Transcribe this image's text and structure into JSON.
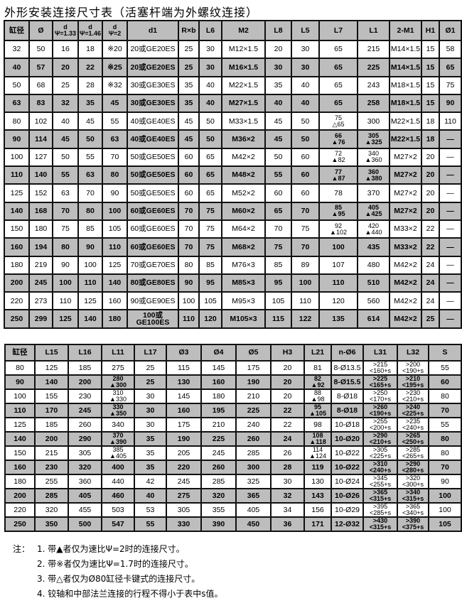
{
  "title": "外形安装连接尺寸表（活塞杆端为外螺纹连接）",
  "colors": {
    "shaded_row": "#bdbdbd",
    "border": "#111111"
  },
  "table1": {
    "headers": [
      "缸径",
      "Ø",
      "d\nΨ=1.33",
      "d\nΨ=1.46",
      "d\nΨ=2",
      "d1",
      "R×b",
      "L6",
      "M2",
      "L8",
      "L5",
      "L7",
      "L1",
      "2-M1",
      "H1",
      "Ø1"
    ],
    "rows": [
      [
        "32",
        "50",
        "16",
        "18",
        "※20",
        "20或GE20ES",
        "25",
        "30",
        "M12×1.5",
        "20",
        "30",
        "65",
        "215",
        "M14×1.5",
        "15",
        "58"
      ],
      [
        "40",
        "57",
        "20",
        "22",
        "※25",
        "20或GE20ES",
        "25",
        "30",
        "M16×1.5",
        "30",
        "30",
        "65",
        "225",
        "M14×1.5",
        "15",
        "65"
      ],
      [
        "50",
        "68",
        "25",
        "28",
        "※32",
        "30或GE30ES",
        "35",
        "40",
        "M22×1.5",
        "35",
        "40",
        "65",
        "243",
        "M18×1.5",
        "15",
        "75"
      ],
      [
        "63",
        "83",
        "32",
        "35",
        "45",
        "30或GE30ES",
        "35",
        "40",
        "M27×1.5",
        "40",
        "40",
        "65",
        "258",
        "M18×1.5",
        "15",
        "90"
      ],
      [
        "80",
        "102",
        "40",
        "45",
        "55",
        "40或GE40ES",
        "45",
        "50",
        "M33×1.5",
        "45",
        "50",
        "75\n△65",
        "300",
        "M22×1.5",
        "18",
        "110"
      ],
      [
        "90",
        "114",
        "45",
        "50",
        "63",
        "40或GE40ES",
        "45",
        "50",
        "M36×2",
        "45",
        "50",
        "66\n▲76",
        "305\n▲325",
        "M22×1.5",
        "18",
        "—"
      ],
      [
        "100",
        "127",
        "50",
        "55",
        "70",
        "50或GE50ES",
        "60",
        "65",
        "M42×2",
        "50",
        "60",
        "72\n▲82",
        "340\n▲360",
        "M27×2",
        "20",
        "—"
      ],
      [
        "110",
        "140",
        "55",
        "63",
        "80",
        "50或GE50ES",
        "60",
        "65",
        "M48×2",
        "55",
        "60",
        "77\n▲87",
        "360\n▲380",
        "M27×2",
        "20",
        "—"
      ],
      [
        "125",
        "152",
        "63",
        "70",
        "90",
        "50或GE50ES",
        "60",
        "65",
        "M52×2",
        "60",
        "60",
        "78",
        "370",
        "M27×2",
        "20",
        "—"
      ],
      [
        "140",
        "168",
        "70",
        "80",
        "100",
        "60或GE60ES",
        "70",
        "75",
        "M60×2",
        "65",
        "70",
        "85\n▲95",
        "405\n▲425",
        "M27×2",
        "20",
        "—"
      ],
      [
        "150",
        "180",
        "75",
        "85",
        "105",
        "60或GE60ES",
        "70",
        "75",
        "M64×2",
        "70",
        "75",
        "92\n▲102",
        "420\n▲440",
        "M33×2",
        "22",
        "—"
      ],
      [
        "160",
        "194",
        "80",
        "90",
        "110",
        "60或GE60ES",
        "70",
        "75",
        "M68×2",
        "75",
        "70",
        "100",
        "435",
        "M33×2",
        "22",
        "—"
      ],
      [
        "180",
        "219",
        "90",
        "100",
        "125",
        "70或GE70ES",
        "80",
        "85",
        "M76×3",
        "85",
        "89",
        "107",
        "480",
        "M42×2",
        "24",
        "—"
      ],
      [
        "200",
        "245",
        "100",
        "110",
        "140",
        "80或GE80ES",
        "90",
        "95",
        "M85×3",
        "95",
        "100",
        "110",
        "510",
        "M42×2",
        "24",
        "—"
      ],
      [
        "220",
        "273",
        "110",
        "125",
        "160",
        "90或GE90ES",
        "100",
        "105",
        "M95×3",
        "105",
        "110",
        "120",
        "560",
        "M42×2",
        "24",
        "—"
      ],
      [
        "250",
        "299",
        "125",
        "140",
        "180",
        "100或GE100ES",
        "110",
        "120",
        "M105×3",
        "115",
        "122",
        "135",
        "614",
        "M42×2",
        "25",
        "—"
      ]
    ]
  },
  "table2": {
    "headers": [
      "缸径",
      "L15",
      "L16",
      "L11",
      "L17",
      "Ø3",
      "Ø4",
      "Ø5",
      "H3",
      "L21",
      "n-Ø6",
      "L31",
      "L32",
      "S"
    ],
    "rows": [
      [
        "80",
        "125",
        "185",
        "275",
        "25",
        "115",
        "145",
        "175",
        "20",
        "81",
        "8-Ø13.5",
        ">215\n<160+s",
        ">200\n<190+s",
        "55"
      ],
      [
        "90",
        "140",
        "200",
        "280\n▲300",
        "25",
        "130",
        "160",
        "190",
        "20",
        "82\n▲92",
        "8-Ø15.5",
        ">225\n<165+s",
        ">210\n<195+s",
        "60"
      ],
      [
        "100",
        "155",
        "230",
        "310\n▲330",
        "30",
        "145",
        "180",
        "210",
        "20",
        "88\n▲98",
        "8-Ø18",
        ">250\n<170+s",
        ">230\n<210+s",
        "80"
      ],
      [
        "110",
        "170",
        "245",
        "330\n▲350",
        "30",
        "160",
        "195",
        "225",
        "22",
        "95\n▲105",
        "8-Ø18",
        ">260\n<190+s",
        ">240\n<225+s",
        "70"
      ],
      [
        "125",
        "185",
        "260",
        "340",
        "30",
        "175",
        "210",
        "240",
        "22",
        "98",
        "10-Ø18",
        ">255\n<200+s",
        ">235\n<240+s",
        "55"
      ],
      [
        "140",
        "200",
        "290",
        "370\n▲390",
        "35",
        "190",
        "225",
        "260",
        "24",
        "108\n▲118",
        "10-Ø20",
        ">290\n<210+s",
        ">265\n<250+s",
        "80"
      ],
      [
        "150",
        "215",
        "305",
        "385\n▲405",
        "35",
        "205",
        "245",
        "285",
        "26",
        "114\n▲124",
        "10-Ø22",
        ">305\n<225+s",
        ">285\n<265+s",
        "80"
      ],
      [
        "160",
        "230",
        "320",
        "400",
        "35",
        "220",
        "260",
        "300",
        "28",
        "119",
        "10-Ø22",
        ">310\n<240+s",
        ">290\n<280+s",
        "70"
      ],
      [
        "180",
        "255",
        "360",
        "440",
        "42",
        "245",
        "285",
        "325",
        "30",
        "130",
        "10-Ø24",
        ">345\n<255+s",
        ">320\n<300+s",
        "90"
      ],
      [
        "200",
        "285",
        "405",
        "460",
        "40",
        "275",
        "320",
        "365",
        "32",
        "143",
        "10-Ø26",
        ">365\n<315+s",
        ">340\n<315+s",
        "100"
      ],
      [
        "220",
        "320",
        "455",
        "503",
        "53",
        "305",
        "355",
        "405",
        "34",
        "156",
        "10-Ø29",
        ">395\n<285+s",
        ">365\n<340+s",
        "100"
      ],
      [
        "250",
        "350",
        "500",
        "547",
        "55",
        "330",
        "390",
        "450",
        "36",
        "171",
        "12-Ø32",
        ">430\n<315+s",
        ">390\n<375+s",
        "105"
      ]
    ]
  },
  "notes": {
    "label": "注：",
    "items": [
      "1. 带▲者仅为速比Ψ=2时的连接尺寸。",
      "2. 带※者仅为速比Ψ=1.7时的连接尺寸。",
      "3. 带△者仅为Ø80缸径卡键式的连接尺寸。",
      "4. 铰轴和中部法兰连接的行程不得小于表中s值。"
    ]
  }
}
